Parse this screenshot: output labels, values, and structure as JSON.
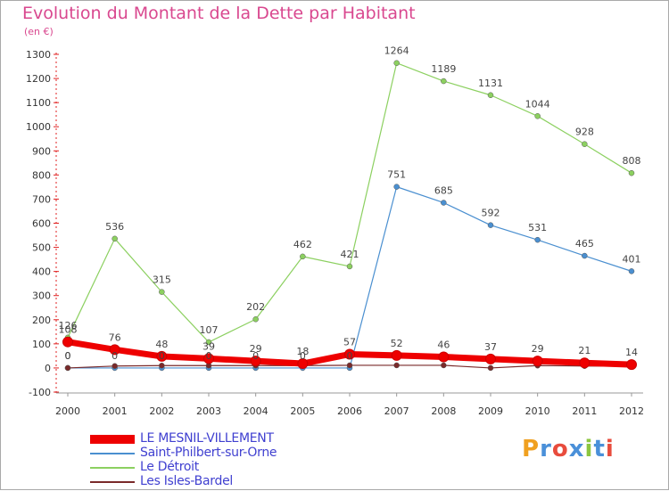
{
  "header": {
    "title": "Evolution du Montant de la Dette par Habitant",
    "subtitle": "(en €)"
  },
  "logo": {
    "text": "Proxiti",
    "letters": [
      "P",
      "r",
      "o",
      "x",
      "i",
      "t",
      "i"
    ],
    "colors": [
      "#f0a020",
      "#4a90d9",
      "#e84c3d",
      "#4a90d9",
      "#8cc63f",
      "#4a90d9",
      "#e84c3d"
    ]
  },
  "chart_data": {
    "type": "line",
    "title": "Evolution du Montant de la Dette par Habitant",
    "subtitle": "(en €)",
    "x": [
      "2000",
      "2001",
      "2002",
      "2003",
      "2004",
      "2005",
      "2006",
      "2007",
      "2008",
      "2009",
      "2010",
      "2011",
      "2012"
    ],
    "y_ticks": [
      "-100",
      "0",
      "100",
      "200",
      "300",
      "400",
      "500",
      "600",
      "700",
      "800",
      "900",
      "1000",
      "1100",
      "1200",
      "1300"
    ],
    "ylim": [
      -100,
      1300
    ],
    "legend_position": "bottom-left",
    "grid": false,
    "series": [
      {
        "name": "LE MESNIL-VILLEMENT",
        "color": "#ee0000",
        "values": [
          108,
          76,
          48,
          39,
          29,
          18,
          57,
          52,
          46,
          37,
          29,
          21,
          14
        ],
        "labels": [
          "108",
          "76",
          "48",
          "39",
          "29",
          "18",
          "57",
          "52",
          "46",
          "37",
          "29",
          "21",
          "14"
        ]
      },
      {
        "name": "Saint-Philbert-sur-Orne",
        "color": "#4a8fd0",
        "values": [
          0,
          0,
          0,
          0,
          0,
          0,
          0,
          751,
          685,
          592,
          531,
          465,
          401
        ],
        "labels": [
          "0",
          "0",
          "0",
          "0",
          "0",
          "0",
          "0",
          "751",
          "685",
          "592",
          "531",
          "465",
          "401"
        ]
      },
      {
        "name": "Le Détroit",
        "color": "#8cd060",
        "values": [
          126,
          536,
          315,
          107,
          202,
          462,
          421,
          1264,
          1189,
          1131,
          1044,
          928,
          808
        ],
        "labels": [
          "126",
          "536",
          "315",
          "107",
          "202",
          "462",
          "421",
          "1264",
          "1189",
          "1131",
          "1044",
          "928",
          "808"
        ]
      },
      {
        "name": "Les Isles-Bardel",
        "color": "#7a2a2a",
        "values": [
          0,
          8,
          10,
          10,
          10,
          10,
          11,
          11,
          11,
          0,
          10,
          8,
          8
        ],
        "labels": [
          "0",
          "",
          "",
          "",
          "",
          "",
          "",
          "",
          "",
          "",
          "",
          "",
          ""
        ]
      }
    ]
  }
}
